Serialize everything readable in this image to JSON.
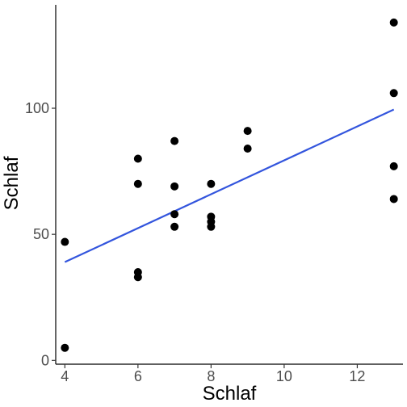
{
  "chart_data": {
    "type": "scatter",
    "title": "",
    "xlabel": "Schlaf",
    "ylabel": "Schlaf",
    "xlim": [
      3.75,
      13.25
    ],
    "ylim": [
      -1.5,
      141
    ],
    "x_ticks": [
      4,
      6,
      8,
      10,
      12
    ],
    "y_ticks": [
      0,
      50,
      100
    ],
    "grid": false,
    "legend": "none",
    "point_color": "#000000",
    "line_color": "#3355dd",
    "points": [
      {
        "x": 4,
        "y": 47
      },
      {
        "x": 4,
        "y": 5
      },
      {
        "x": 6,
        "y": 80
      },
      {
        "x": 6,
        "y": 70
      },
      {
        "x": 6,
        "y": 35
      },
      {
        "x": 6,
        "y": 33
      },
      {
        "x": 7,
        "y": 87
      },
      {
        "x": 7,
        "y": 69
      },
      {
        "x": 7,
        "y": 58
      },
      {
        "x": 7,
        "y": 53
      },
      {
        "x": 8,
        "y": 70
      },
      {
        "x": 8,
        "y": 57
      },
      {
        "x": 8,
        "y": 55
      },
      {
        "x": 8,
        "y": 53
      },
      {
        "x": 9,
        "y": 91
      },
      {
        "x": 9,
        "y": 84
      },
      {
        "x": 13,
        "y": 134
      },
      {
        "x": 13,
        "y": 106
      },
      {
        "x": 13,
        "y": 77
      },
      {
        "x": 13,
        "y": 64
      }
    ],
    "trend_line": {
      "x": [
        4,
        13
      ],
      "y": [
        39,
        99.5
      ]
    }
  }
}
